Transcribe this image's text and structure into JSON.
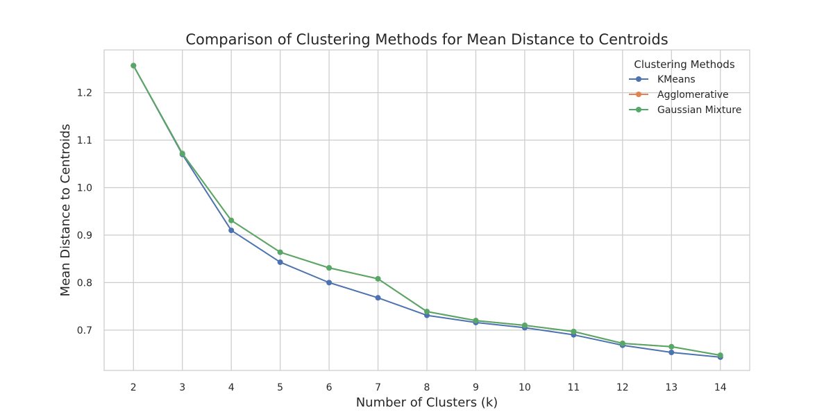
{
  "chart_data": {
    "type": "line",
    "title": "Comparison of Clustering Methods for Mean Distance to Centroids",
    "xlabel": "Number of Clusters (k)",
    "ylabel": "Mean Distance to Centroids",
    "x": [
      2,
      3,
      4,
      5,
      6,
      7,
      8,
      9,
      10,
      11,
      12,
      13,
      14
    ],
    "x_tick_labels": [
      "2",
      "3",
      "4",
      "5",
      "6",
      "7",
      "8",
      "9",
      "10",
      "11",
      "12",
      "13",
      "14"
    ],
    "yticks": [
      0.7,
      0.8,
      0.9,
      1.0,
      1.1,
      1.2
    ],
    "y_tick_labels": [
      "0.7",
      "0.8",
      "0.9",
      "1.0",
      "1.1",
      "1.2"
    ],
    "xlim": [
      1.4,
      14.6
    ],
    "ylim": [
      0.615,
      1.29
    ],
    "grid": true,
    "legend": {
      "title": "Clustering Methods",
      "placement": "top-right"
    },
    "series": [
      {
        "name": "KMeans",
        "color": "#4c72b0",
        "marker": "circle",
        "values": [
          1.257,
          1.07,
          0.91,
          0.843,
          0.8,
          0.768,
          0.731,
          0.716,
          0.705,
          0.69,
          0.668,
          0.653,
          0.643
        ]
      },
      {
        "name": "Agglomerative",
        "color": "#dd8452",
        "marker": "circle",
        "values": [
          1.257,
          1.072,
          0.931,
          0.864,
          0.831,
          0.808,
          0.739,
          0.72,
          0.71,
          0.697,
          0.672,
          0.665,
          0.647
        ]
      },
      {
        "name": "Gaussian Mixture",
        "color": "#55a868",
        "marker": "circle",
        "values": [
          1.257,
          1.072,
          0.931,
          0.864,
          0.831,
          0.808,
          0.739,
          0.72,
          0.71,
          0.697,
          0.672,
          0.665,
          0.647
        ]
      }
    ]
  }
}
